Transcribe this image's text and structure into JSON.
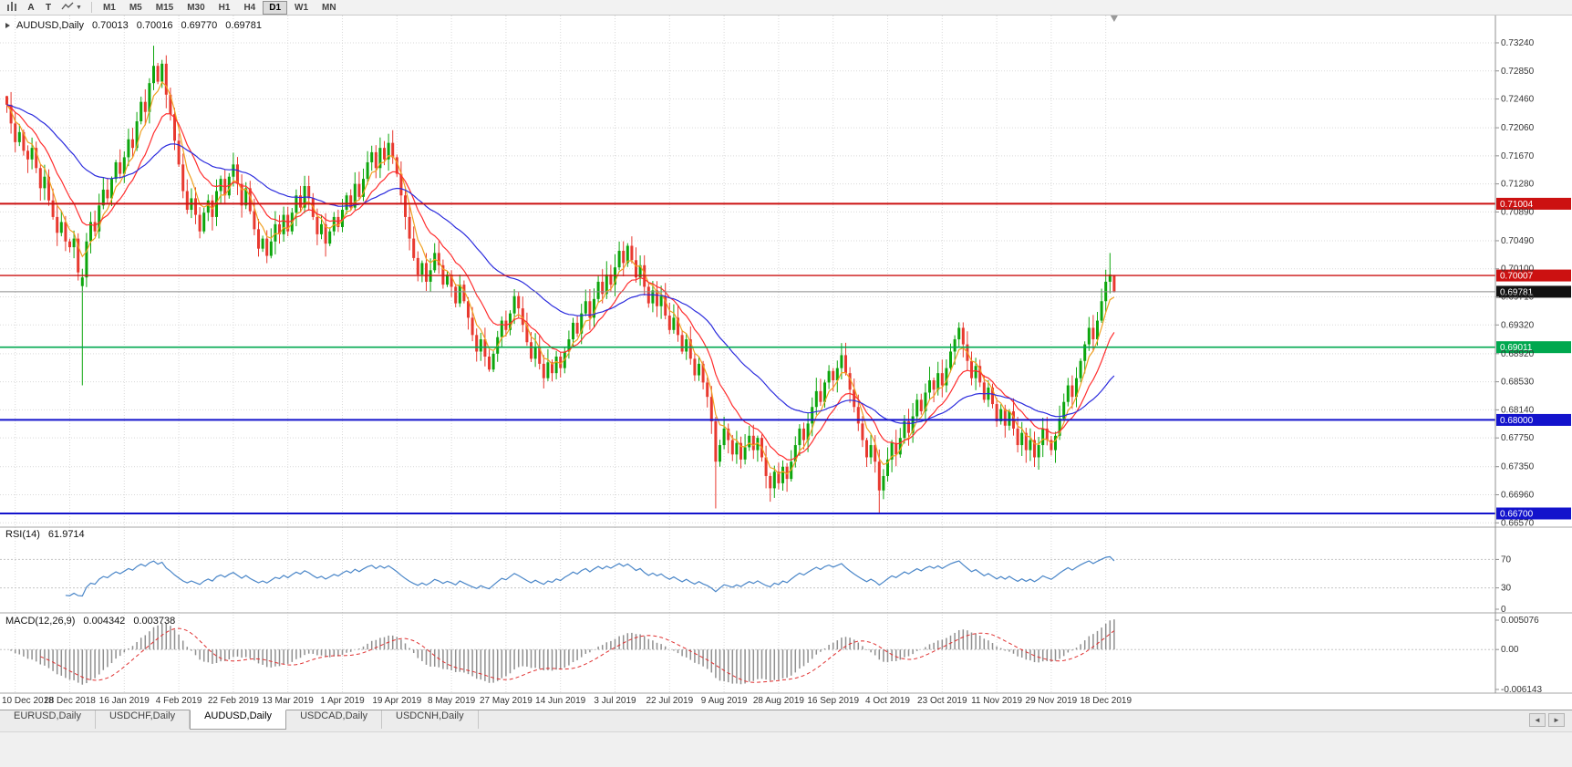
{
  "toolbar": {
    "tool_a_label": "A",
    "tool_t_label": "T",
    "timeframes": [
      "M1",
      "M5",
      "M15",
      "M30",
      "H1",
      "H4",
      "D1",
      "W1",
      "MN"
    ],
    "active_timeframe": "D1"
  },
  "chart": {
    "symbol_label": "AUDUSD,Daily",
    "ohlc": {
      "open": "0.70013",
      "high": "0.70016",
      "low": "0.69770",
      "close": "0.69781"
    },
    "rsi_label": "RSI(14)",
    "rsi_value": "61.9714",
    "macd_label": "MACD(12,26,9)",
    "macd_value": "0.004342",
    "macd_signal": "0.003738"
  },
  "tabs": {
    "items": [
      "EURUSD,Daily",
      "USDCHF,Daily",
      "AUDUSD,Daily",
      "USDCAD,Daily",
      "USDCNH,Daily"
    ],
    "active": "AUDUSD,Daily",
    "scroll_left": "◄",
    "scroll_right": "►"
  },
  "chart_data": {
    "type": "candlestick",
    "symbol": "AUDUSD",
    "timeframe": "Daily",
    "current_ohlc": {
      "open": 0.70013,
      "high": 0.70016,
      "low": 0.6977,
      "close": 0.69781
    },
    "ylim": [
      0.6651,
      0.7362
    ],
    "label_start": 2,
    "label_every": 13,
    "closes": [
      0.7238,
      0.7212,
      0.7186,
      0.72,
      0.7174,
      0.7162,
      0.7178,
      0.715,
      0.7122,
      0.7138,
      0.7105,
      0.7082,
      0.706,
      0.7075,
      0.7048,
      0.704,
      0.7052,
      0.7005,
      0.6998,
      0.7048,
      0.7075,
      0.7062,
      0.7098,
      0.712,
      0.7108,
      0.7135,
      0.7158,
      0.7142,
      0.7165,
      0.719,
      0.7178,
      0.7215,
      0.7242,
      0.7228,
      0.7268,
      0.7292,
      0.727,
      0.7295,
      0.7252,
      0.7225,
      0.7188,
      0.7155,
      0.7118,
      0.7092,
      0.7108,
      0.7085,
      0.7062,
      0.7088,
      0.7105,
      0.7082,
      0.7118,
      0.7135,
      0.7112,
      0.7138,
      0.7155,
      0.7128,
      0.7098,
      0.7122,
      0.709,
      0.7065,
      0.7038,
      0.7052,
      0.7028,
      0.7048,
      0.7072,
      0.7058,
      0.7085,
      0.7062,
      0.7088,
      0.7112,
      0.7095,
      0.7125,
      0.7108,
      0.7082,
      0.7058,
      0.7072,
      0.7045,
      0.7062,
      0.7082,
      0.7068,
      0.7092,
      0.7112,
      0.7095,
      0.7128,
      0.711,
      0.7135,
      0.7158,
      0.7172,
      0.715,
      0.7178,
      0.7162,
      0.7185,
      0.7165,
      0.7142,
      0.7112,
      0.7082,
      0.7052,
      0.7025,
      0.7002,
      0.7018,
      0.6992,
      0.7008,
      0.7032,
      0.7015,
      0.6988,
      0.7002,
      0.6985,
      0.6962,
      0.6988,
      0.6965,
      0.6942,
      0.6918,
      0.6895,
      0.6912,
      0.6888,
      0.687,
      0.6892,
      0.6915,
      0.6938,
      0.6925,
      0.6948,
      0.6972,
      0.6955,
      0.6932,
      0.6908,
      0.6885,
      0.6902,
      0.6878,
      0.6858,
      0.688,
      0.6865,
      0.6888,
      0.6872,
      0.6895,
      0.6912,
      0.6935,
      0.692,
      0.6948,
      0.6965,
      0.6942,
      0.6968,
      0.6992,
      0.6975,
      0.7002,
      0.6988,
      0.7012,
      0.7035,
      0.7018,
      0.7042,
      0.7022,
      0.6998,
      0.7015,
      0.6985,
      0.6962,
      0.698,
      0.6958,
      0.6972,
      0.6945,
      0.6925,
      0.6942,
      0.6918,
      0.6895,
      0.6912,
      0.6885,
      0.6862,
      0.6878,
      0.6852,
      0.6832,
      0.6798,
      0.6742,
      0.6765,
      0.6788,
      0.6772,
      0.6752,
      0.6768,
      0.6745,
      0.6762,
      0.6778,
      0.6758,
      0.6775,
      0.6748,
      0.6722,
      0.6705,
      0.6728,
      0.6712,
      0.6735,
      0.6718,
      0.6742,
      0.6765,
      0.6788,
      0.6772,
      0.6795,
      0.6818,
      0.684,
      0.6825,
      0.6852,
      0.6868,
      0.6855,
      0.6872,
      0.689,
      0.6865,
      0.6842,
      0.6818,
      0.6795,
      0.6772,
      0.6748,
      0.6765,
      0.6742,
      0.6702,
      0.6722,
      0.6745,
      0.6768,
      0.6752,
      0.6775,
      0.6798,
      0.6782,
      0.6805,
      0.6828,
      0.6812,
      0.6838,
      0.6855,
      0.6842,
      0.6865,
      0.6848,
      0.6872,
      0.6895,
      0.6912,
      0.6928,
      0.6905,
      0.6882,
      0.6858,
      0.6875,
      0.6852,
      0.6828,
      0.6845,
      0.6822,
      0.6798,
      0.6815,
      0.6792,
      0.6812,
      0.6788,
      0.6765,
      0.6782,
      0.6758,
      0.6772,
      0.6748,
      0.6765,
      0.6788,
      0.6772,
      0.6758,
      0.6778,
      0.6802,
      0.6825,
      0.6848,
      0.6832,
      0.6858,
      0.6882,
      0.6905,
      0.6928,
      0.6912,
      0.6938,
      0.6965,
      0.6992,
      0.7002,
      0.69781
    ],
    "candle_overrides": {
      "0": {
        "open": 0.725
      },
      "18": {
        "open": 0.6986,
        "close": 0.6998,
        "low": 0.6848,
        "high": 0.701
      },
      "35": {
        "high": 0.732
      },
      "169": {
        "low": 0.6677
      },
      "208": {
        "low": 0.667
      },
      "263": {
        "high": 0.7032
      },
      "264": {
        "open": 0.70013,
        "high": 0.70016,
        "low": 0.6977,
        "close": 0.69781
      }
    },
    "horizontal_lines": [
      {
        "price": 0.71004,
        "label": "0.71004",
        "color": "#cc1111",
        "width": 2
      },
      {
        "price": 0.70007,
        "label": "0.70007",
        "color": "#cc1111",
        "width": 1.4
      },
      {
        "price": 0.69011,
        "label": "0.69011",
        "color": "#00a84f",
        "width": 1.6
      },
      {
        "price": 0.68,
        "label": "0.68000",
        "color": "#1313cc",
        "width": 2
      },
      {
        "price": 0.667,
        "label": "0.66700",
        "color": "#1313cc",
        "width": 2
      }
    ],
    "bid_line": {
      "price": 0.69781,
      "label": "0.69781",
      "tag_color": "#111111",
      "line_color": "#8a8a8a"
    },
    "price_axis_labels": [
      "0.73240",
      "0.72850",
      "0.72460",
      "0.72060",
      "0.71670",
      "0.71280",
      "0.70890",
      "0.70490",
      "0.70100",
      "0.69710",
      "0.69320",
      "0.68920",
      "0.68530",
      "0.68140",
      "0.67750",
      "0.67350",
      "0.66960",
      "0.66570"
    ],
    "date_labels": [
      "10 Dec 2018",
      "28 Dec 2018",
      "16 Jan 2019",
      "4 Feb 2019",
      "22 Feb 2019",
      "13 Mar 2019",
      "1 Apr 2019",
      "19 Apr 2019",
      "8 May 2019",
      "27 May 2019",
      "14 Jun 2019",
      "3 Jul 2019",
      "22 Jul 2019",
      "9 Aug 2019",
      "28 Aug 2019",
      "16 Sep 2019",
      "4 Oct 2019",
      "23 Oct 2019",
      "11 Nov 2019",
      "29 Nov 2019",
      "18 Dec 2019"
    ],
    "indicators": {
      "rsi": {
        "period": 14,
        "current": 61.9714,
        "color": "#4a86c8",
        "levels": [
          70,
          30
        ],
        "axis_labels": [
          {
            "text": "70",
            "v": 70
          },
          {
            "text": "30",
            "v": 30
          },
          {
            "text": "0",
            "v": 0
          }
        ]
      },
      "macd": {
        "fast": 12,
        "slow": 26,
        "signal": 9,
        "current_macd": 0.004342,
        "current_signal": 0.003738,
        "range": [
          -0.00615,
          0.00508
        ],
        "axis_labels": [
          {
            "text": "0.005076",
            "v": 0.005076
          },
          {
            "text": "0.00",
            "v": 0
          },
          {
            "text": "-0.006143",
            "v": -0.006143
          }
        ],
        "histogram_color": "#8f8f8f",
        "signal_color": "#e03030"
      },
      "moving_averages": [
        {
          "name": "fast",
          "period": 5,
          "color": "#f0a020"
        },
        {
          "name": "medium",
          "period": 13,
          "color": "#ff2d2d"
        },
        {
          "name": "slow",
          "period": 40,
          "color": "#2b2bdd"
        }
      ]
    },
    "colors": {
      "bull": "#0da60d",
      "bear": "#e8392f",
      "grid": "#d9d9d9",
      "background": "#ffffff"
    }
  }
}
